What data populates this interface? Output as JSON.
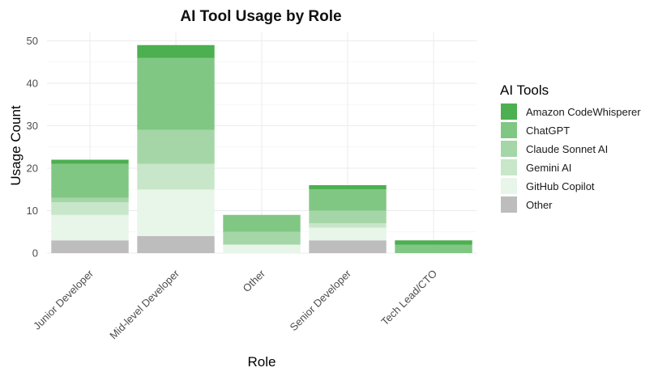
{
  "chart_data": {
    "type": "bar",
    "stacked": true,
    "title": "AI Tool Usage by Role",
    "xlabel": "Role",
    "ylabel": "Usage Count",
    "ylim": [
      0,
      52
    ],
    "yticks": [
      0,
      10,
      20,
      30,
      40,
      50
    ],
    "grid": true,
    "legend_position": "right",
    "legend_title": "AI Tools",
    "categories": [
      "Junior Developer",
      "Mid-level Developer",
      "Other",
      "Senior Developer",
      "Tech Lead/CTO"
    ],
    "series": [
      {
        "name": "Other",
        "color": "#bdbdbd",
        "values": [
          3,
          4,
          0,
          3,
          0
        ]
      },
      {
        "name": "GitHub Copilot",
        "color": "#e8f5e9",
        "values": [
          6,
          11,
          2,
          3,
          0
        ]
      },
      {
        "name": "Gemini AI",
        "color": "#c8e6c9",
        "values": [
          3,
          6,
          0,
          1,
          0
        ]
      },
      {
        "name": "Claude Sonnet AI",
        "color": "#a5d6a7",
        "values": [
          1,
          8,
          3,
          3,
          0
        ]
      },
      {
        "name": "ChatGPT",
        "color": "#81c784",
        "values": [
          8,
          17,
          4,
          5,
          2
        ]
      },
      {
        "name": "Amazon CodeWhisperer",
        "color": "#4caf50",
        "values": [
          1,
          3,
          0,
          1,
          1
        ]
      }
    ],
    "legend_order": [
      "Amazon CodeWhisperer",
      "ChatGPT",
      "Claude Sonnet AI",
      "Gemini AI",
      "GitHub Copilot",
      "Other"
    ]
  }
}
